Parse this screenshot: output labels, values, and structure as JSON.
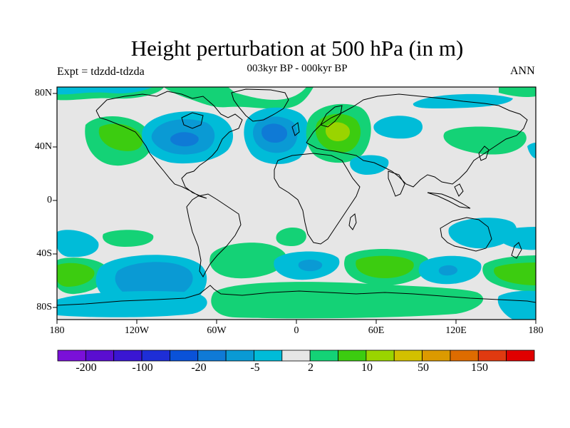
{
  "title": "Height perturbation at 500 hPa (in m)",
  "subtitle": "003kyr BP - 000kyr BP",
  "left_label": "Expt = tdzdd-tdzda",
  "right_label": "ANN",
  "lat_labels": [
    "80N",
    "40N",
    "0",
    "40S",
    "80S"
  ],
  "lon_labels": [
    "180",
    "120W",
    "60W",
    "0",
    "60E",
    "120E",
    "180"
  ],
  "colorbar": {
    "labels": [
      "-200",
      "-100",
      "-20",
      "-5",
      "2",
      "10",
      "50",
      "150"
    ],
    "colors": [
      "#7a10d8",
      "#5a0ed0",
      "#3a16d2",
      "#1e2ed6",
      "#0a52d8",
      "#0f7ad6",
      "#0a9ad4",
      "#00bcd8",
      "#e6e6e6",
      "#14d276",
      "#3ccc10",
      "#9ad400",
      "#d2c000",
      "#dc9a00",
      "#de6c00",
      "#e03a10",
      "#e00000"
    ]
  },
  "map": {
    "background": "#e6e6e6",
    "level_colors": {
      "-20": "#0f7ad6",
      "-5": "#0a9ad4",
      "-2": "#00bcd8",
      "2": "#14d276",
      "10": "#3ccc10",
      "50": "#9ad400"
    }
  }
}
